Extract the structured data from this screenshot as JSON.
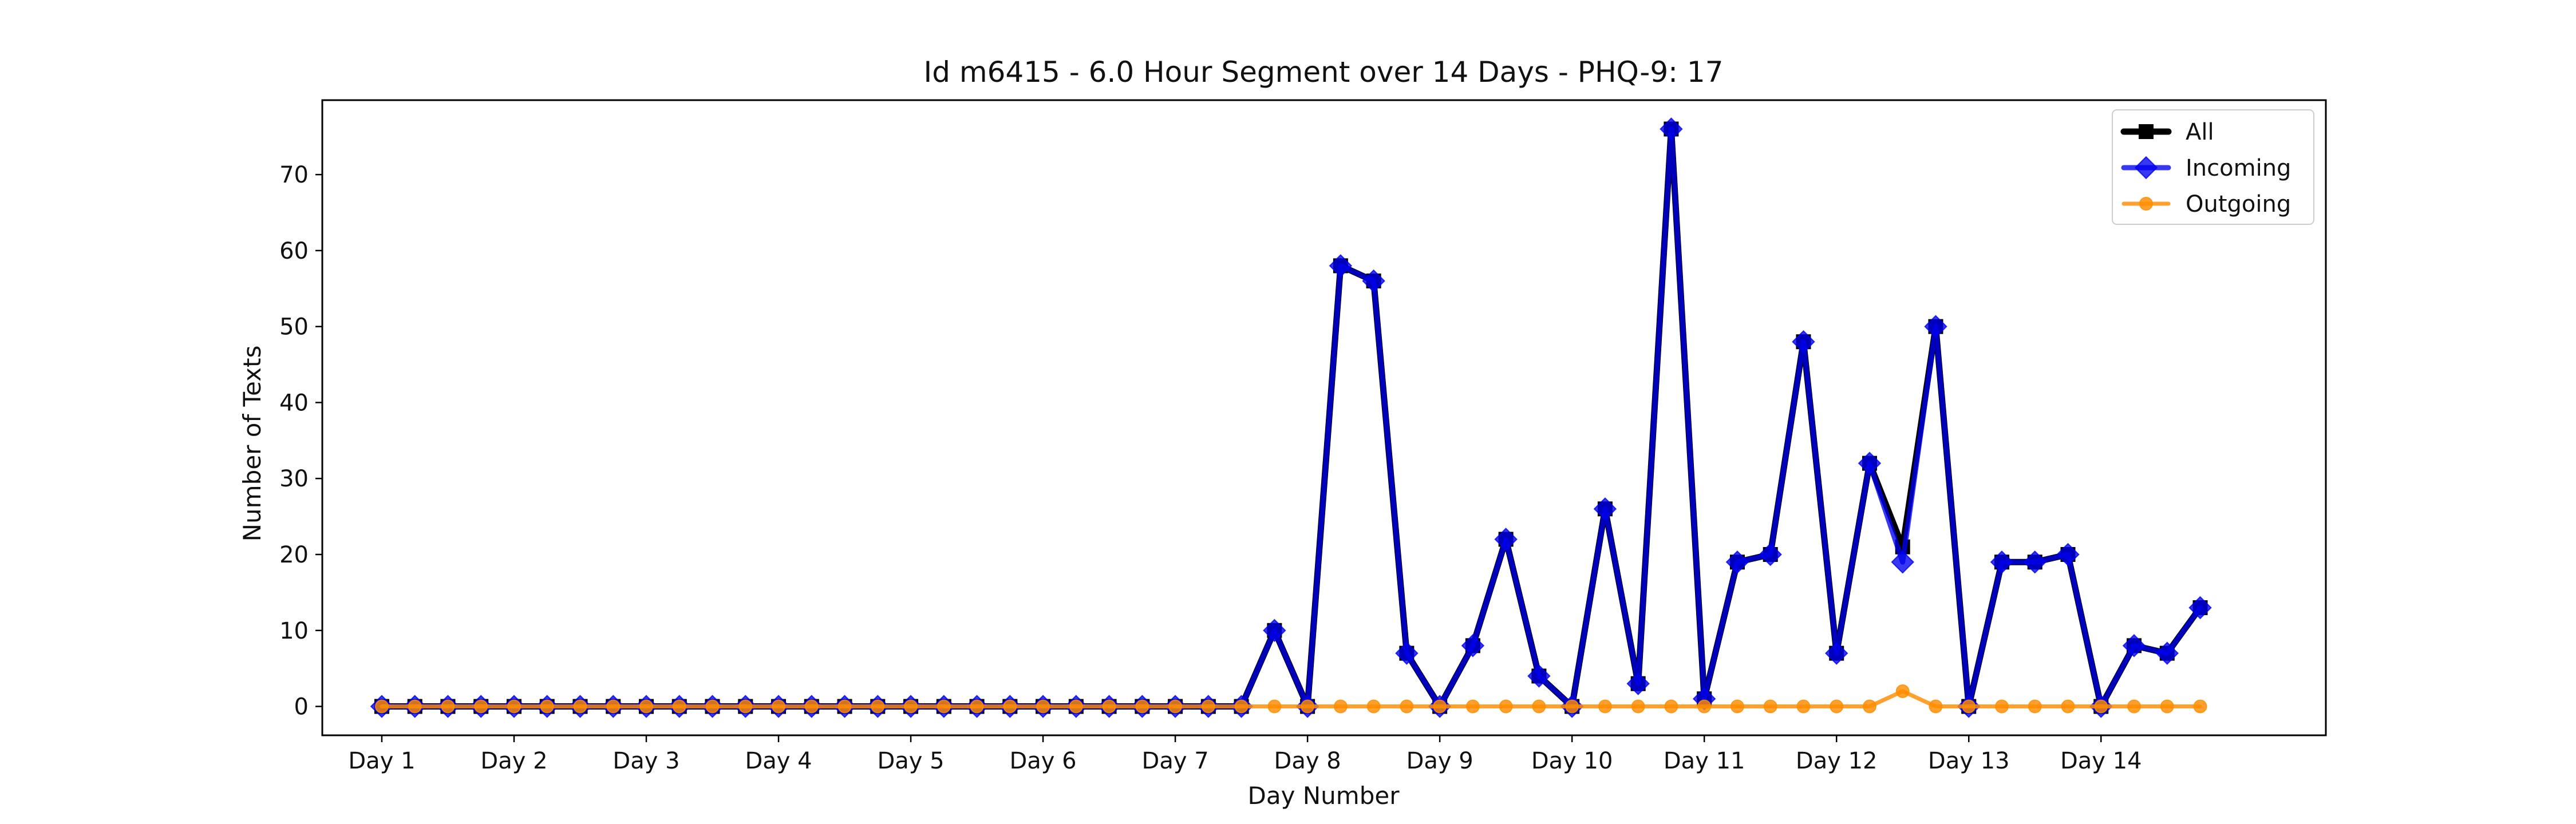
{
  "chart_data": {
    "type": "line",
    "title": "Id m6415 - 6.0 Hour Segment over 14 Days - PHQ-9: 17",
    "xlabel": "Day Number",
    "ylabel": "Number of Texts",
    "xlim": [
      -1.8,
      58.8
    ],
    "ylim": [
      -3.8,
      79.8
    ],
    "xticks": [
      {
        "value": 0,
        "label": "Day 1"
      },
      {
        "value": 4,
        "label": "Day 2"
      },
      {
        "value": 8,
        "label": "Day 3"
      },
      {
        "value": 12,
        "label": "Day 4"
      },
      {
        "value": 16,
        "label": "Day 5"
      },
      {
        "value": 20,
        "label": "Day 6"
      },
      {
        "value": 24,
        "label": "Day 7"
      },
      {
        "value": 28,
        "label": "Day 8"
      },
      {
        "value": 32,
        "label": "Day 9"
      },
      {
        "value": 36,
        "label": "Day 10"
      },
      {
        "value": 40,
        "label": "Day 11"
      },
      {
        "value": 44,
        "label": "Day 12"
      },
      {
        "value": 48,
        "label": "Day 13"
      },
      {
        "value": 52,
        "label": "Day 14"
      }
    ],
    "yticks": [
      0,
      10,
      20,
      30,
      40,
      50,
      60,
      70
    ],
    "grid": false,
    "legend_position": "top-right",
    "x": [
      0,
      1,
      2,
      3,
      4,
      5,
      6,
      7,
      8,
      9,
      10,
      11,
      12,
      13,
      14,
      15,
      16,
      17,
      18,
      19,
      20,
      21,
      22,
      23,
      24,
      25,
      26,
      27,
      28,
      29,
      30,
      31,
      32,
      33,
      34,
      35,
      36,
      37,
      38,
      39,
      40,
      41,
      42,
      43,
      44,
      45,
      46,
      47,
      48,
      49,
      50,
      51,
      52,
      53,
      54,
      55
    ],
    "series": [
      {
        "name": "All",
        "color": "#000000",
        "marker": "square",
        "values": [
          0,
          0,
          0,
          0,
          0,
          0,
          0,
          0,
          0,
          0,
          0,
          0,
          0,
          0,
          0,
          0,
          0,
          0,
          0,
          0,
          0,
          0,
          0,
          0,
          0,
          0,
          0,
          10,
          0,
          58,
          56,
          7,
          0,
          8,
          22,
          4,
          0,
          26,
          3,
          76,
          1,
          19,
          20,
          48,
          7,
          32,
          21,
          50,
          0,
          19,
          19,
          20,
          0,
          8,
          7,
          13
        ]
      },
      {
        "name": "Incoming",
        "color": "#0000ee",
        "marker": "diamond",
        "values": [
          0,
          0,
          0,
          0,
          0,
          0,
          0,
          0,
          0,
          0,
          0,
          0,
          0,
          0,
          0,
          0,
          0,
          0,
          0,
          0,
          0,
          0,
          0,
          0,
          0,
          0,
          0,
          10,
          0,
          58,
          56,
          7,
          0,
          8,
          22,
          4,
          0,
          26,
          3,
          76,
          1,
          19,
          20,
          48,
          7,
          32,
          19,
          50,
          0,
          19,
          19,
          20,
          0,
          8,
          7,
          13
        ]
      },
      {
        "name": "Outgoing",
        "color": "#ff8c00",
        "marker": "circle",
        "values": [
          0,
          0,
          0,
          0,
          0,
          0,
          0,
          0,
          0,
          0,
          0,
          0,
          0,
          0,
          0,
          0,
          0,
          0,
          0,
          0,
          0,
          0,
          0,
          0,
          0,
          0,
          0,
          0,
          0,
          0,
          0,
          0,
          0,
          0,
          0,
          0,
          0,
          0,
          0,
          0,
          0,
          0,
          0,
          0,
          0,
          0,
          2,
          0,
          0,
          0,
          0,
          0,
          0,
          0,
          0,
          0
        ]
      }
    ]
  }
}
